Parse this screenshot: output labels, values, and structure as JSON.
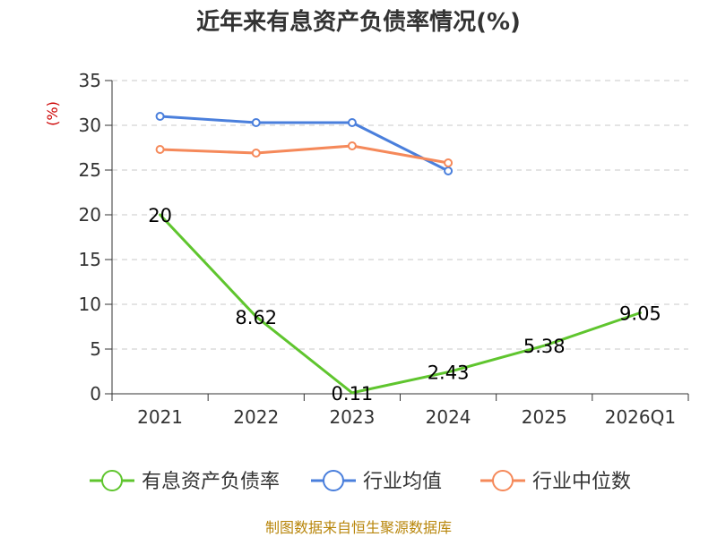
{
  "chart_data": {
    "type": "line",
    "title": "近年来有息资产负债率情况(%)",
    "y_unit": "(%)",
    "categories": [
      "2021",
      "2022",
      "2023",
      "2024",
      "2025",
      "2026Q1"
    ],
    "ylim": [
      0,
      35
    ],
    "yticks": [
      0,
      5,
      10,
      15,
      20,
      25,
      30,
      35
    ],
    "grid": true,
    "legend_position": "bottom",
    "series": [
      {
        "name": "有息资产负债率",
        "color": "#5fc52e",
        "values": [
          20,
          8.62,
          0.11,
          2.43,
          5.38,
          9.05
        ],
        "labels": [
          "20",
          "8.62",
          "0.11",
          "2.43",
          "5.38",
          "9.05"
        ],
        "show_labels": true,
        "show_markers": false
      },
      {
        "name": "行业均值",
        "color": "#4a7fdc",
        "values": [
          31.0,
          30.3,
          30.3,
          24.9,
          null,
          null
        ],
        "show_labels": false,
        "show_markers": true
      },
      {
        "name": "行业中位数",
        "color": "#f5895a",
        "values": [
          27.3,
          26.9,
          27.7,
          25.8,
          null,
          null
        ],
        "show_labels": false,
        "show_markers": true
      }
    ]
  },
  "source_text": "制图数据来自恒生聚源数据库"
}
